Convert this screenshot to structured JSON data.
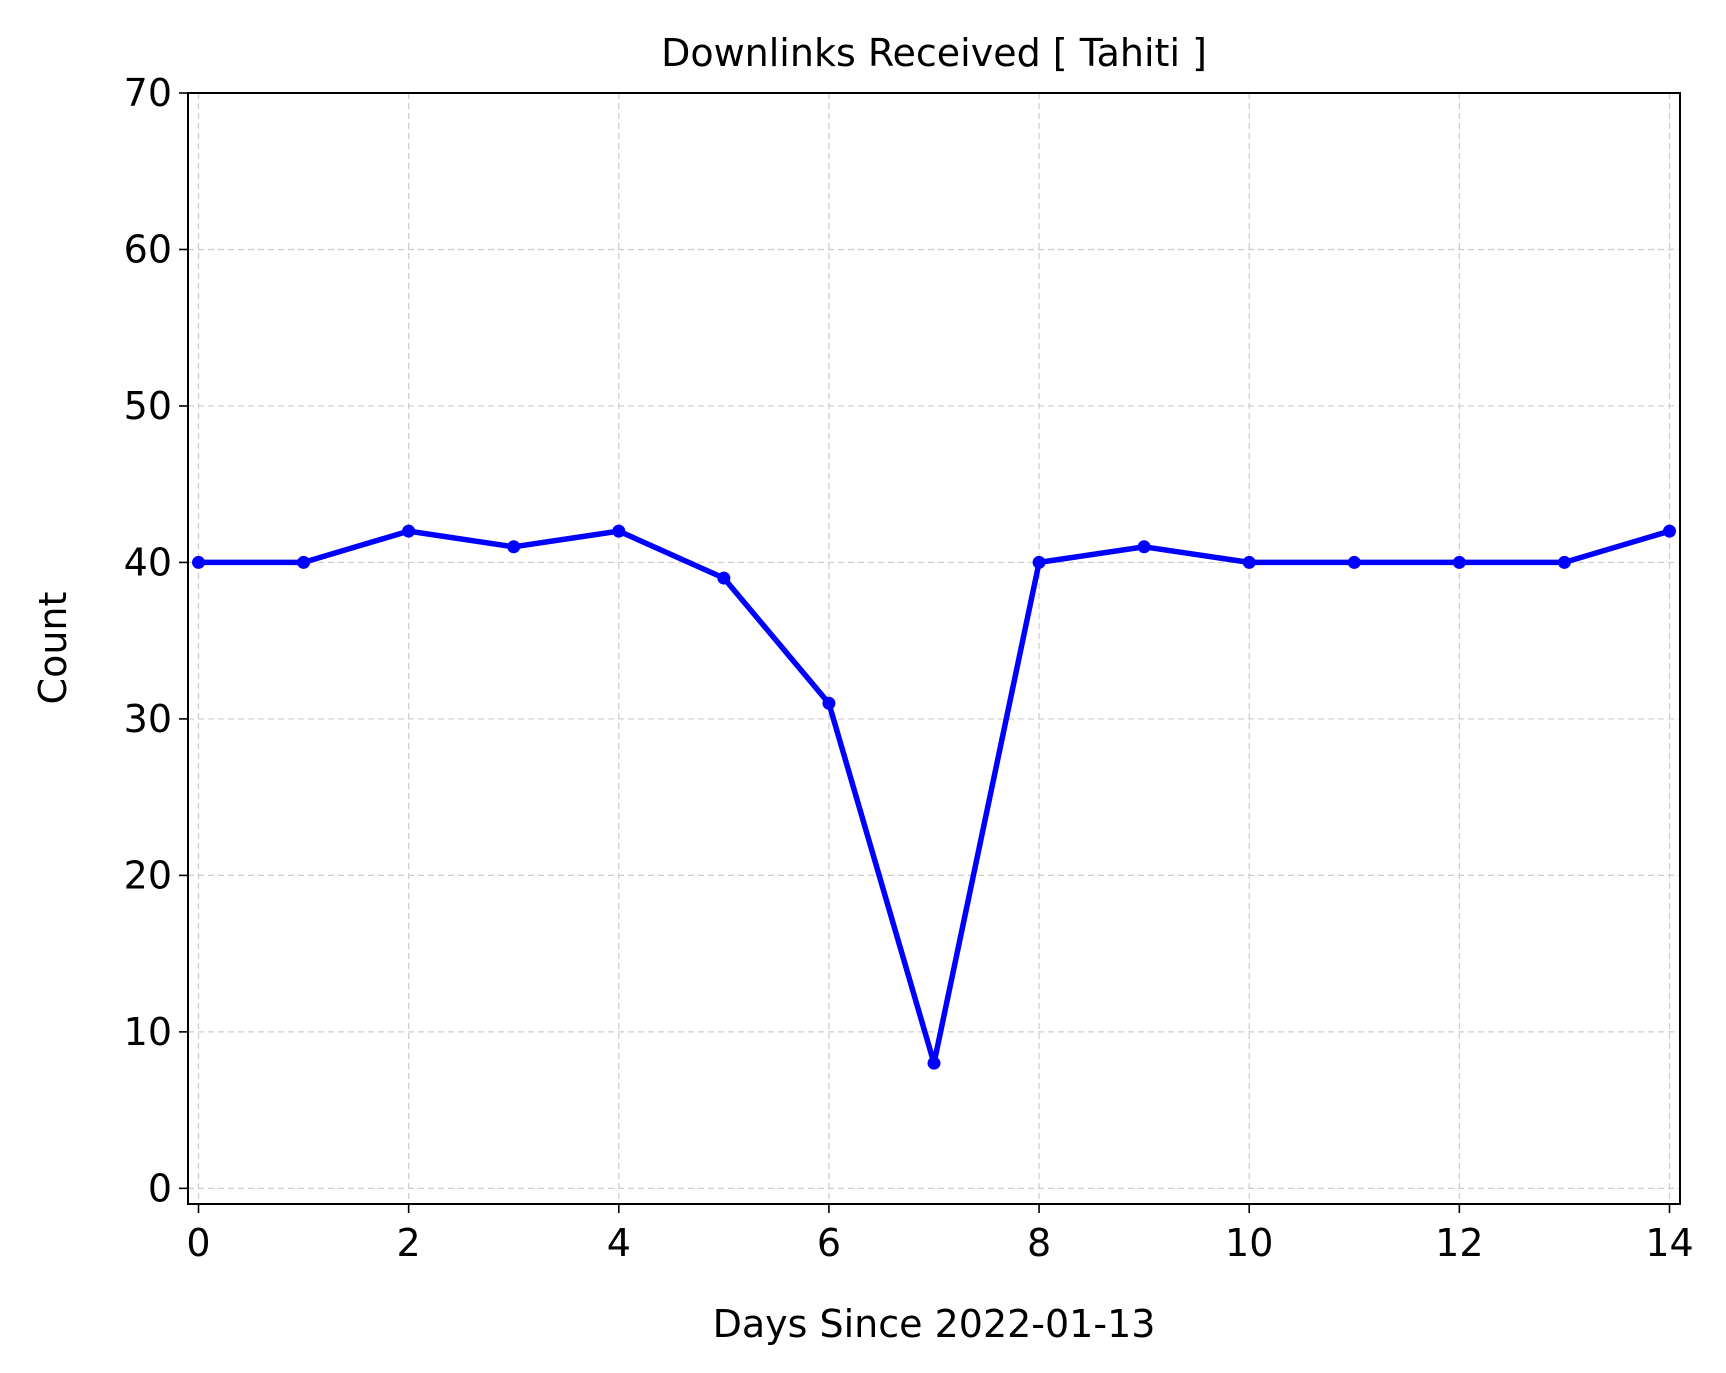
{
  "chart_data": {
    "type": "line",
    "title": "Downlinks Received [ Tahiti ]",
    "xlabel": "Days Since 2022-01-13",
    "ylabel": "Count",
    "xlim": [
      -0.1,
      14.1
    ],
    "ylim": [
      -1,
      70
    ],
    "xticks": [
      0,
      2,
      4,
      6,
      8,
      10,
      12,
      14
    ],
    "yticks": [
      0,
      10,
      20,
      30,
      40,
      50,
      60,
      70
    ],
    "grid": true,
    "legend": "none",
    "series": [
      {
        "color": "#0000ff",
        "marker": "circle",
        "x": [
          0,
          1,
          2,
          3,
          4,
          5,
          6,
          7,
          8,
          9,
          10,
          11,
          12,
          13,
          14
        ],
        "y": [
          40,
          40,
          42,
          41,
          42,
          39,
          31,
          8,
          40,
          41,
          40,
          40,
          40,
          40,
          42
        ]
      }
    ]
  }
}
